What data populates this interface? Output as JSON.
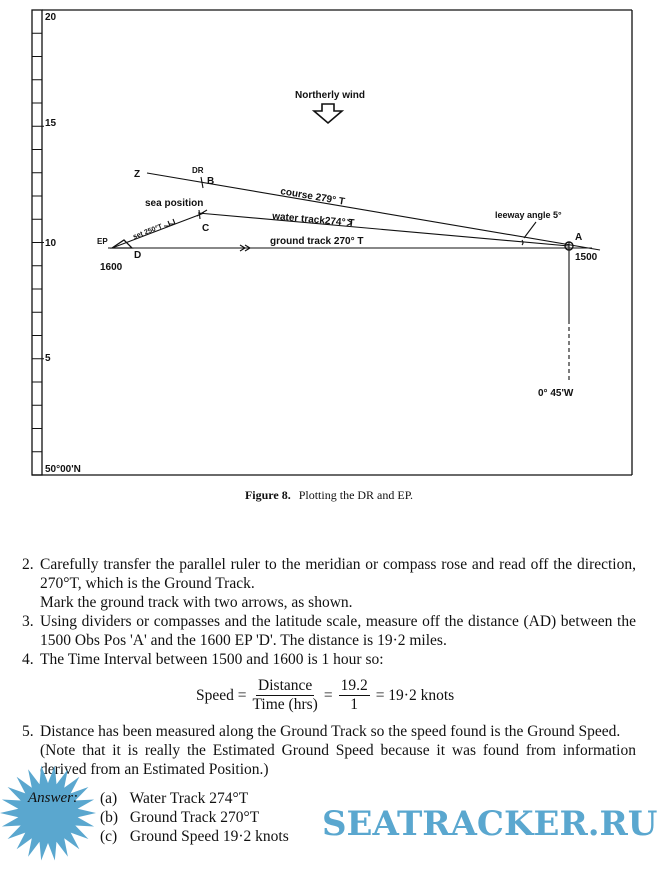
{
  "figure": {
    "scale_labels": [
      "20",
      "15",
      "10",
      "5",
      "50°00'N"
    ],
    "wind_label": "Northerly wind",
    "points": {
      "Z": "Z",
      "DR": "DR",
      "B": "B",
      "C": "C",
      "D": "D",
      "EP": "EP",
      "A": "A"
    },
    "times": {
      "A": "1500",
      "D": "1600"
    },
    "course_label": "course 279° T",
    "water_track_label": "water track274° T",
    "ground_track_label": "ground track 270° T",
    "set_label": "set 250°T",
    "sea_position_label": "sea position",
    "leeway_label": "leeway angle 5°",
    "meridian_label": "0° 45'W",
    "caption_label": "Figure 8.",
    "caption_text": "Plotting the DR and EP."
  },
  "steps": [
    {
      "num": "2.",
      "lines": [
        "Carefully transfer the parallel ruler to the meridian or compass rose and read off the direction, 270°T, which is the Ground Track.",
        "Mark the ground track with two arrows, as shown."
      ]
    },
    {
      "num": "3.",
      "lines": [
        "Using dividers or compasses and the latitude scale, measure off the distance (AD) between the 1500 Obs Pos 'A' and the 1600 EP 'D'. The distance is 19·2 miles."
      ]
    },
    {
      "num": "4.",
      "lines": [
        "The Time Interval between 1500 and 1600 is 1 hour so:"
      ]
    },
    {
      "num": "5.",
      "lines": [
        "Distance has been measured along the Ground Track so the speed found is the Ground Speed.",
        "(Note that it is really the Estimated Ground Speed because it was found from information derived from an Estimated Position.)"
      ]
    }
  ],
  "formula": {
    "lhs": "Speed =",
    "num1": "Distance",
    "den1": "Time (hrs)",
    "eq": "=",
    "num2": "19.2",
    "den2": "1",
    "result": "= 19·2 knots"
  },
  "answer": {
    "label": "Answer:",
    "items": [
      {
        "letter": "(a)",
        "text": "Water Track 274°T"
      },
      {
        "letter": "(b)",
        "text": "Ground Track 270°T"
      },
      {
        "letter": "(c)",
        "text": "Ground Speed 19·2 knots"
      }
    ]
  },
  "watermark": {
    "text": "SEATRACKER.RU",
    "color": "#5aa7cf"
  }
}
